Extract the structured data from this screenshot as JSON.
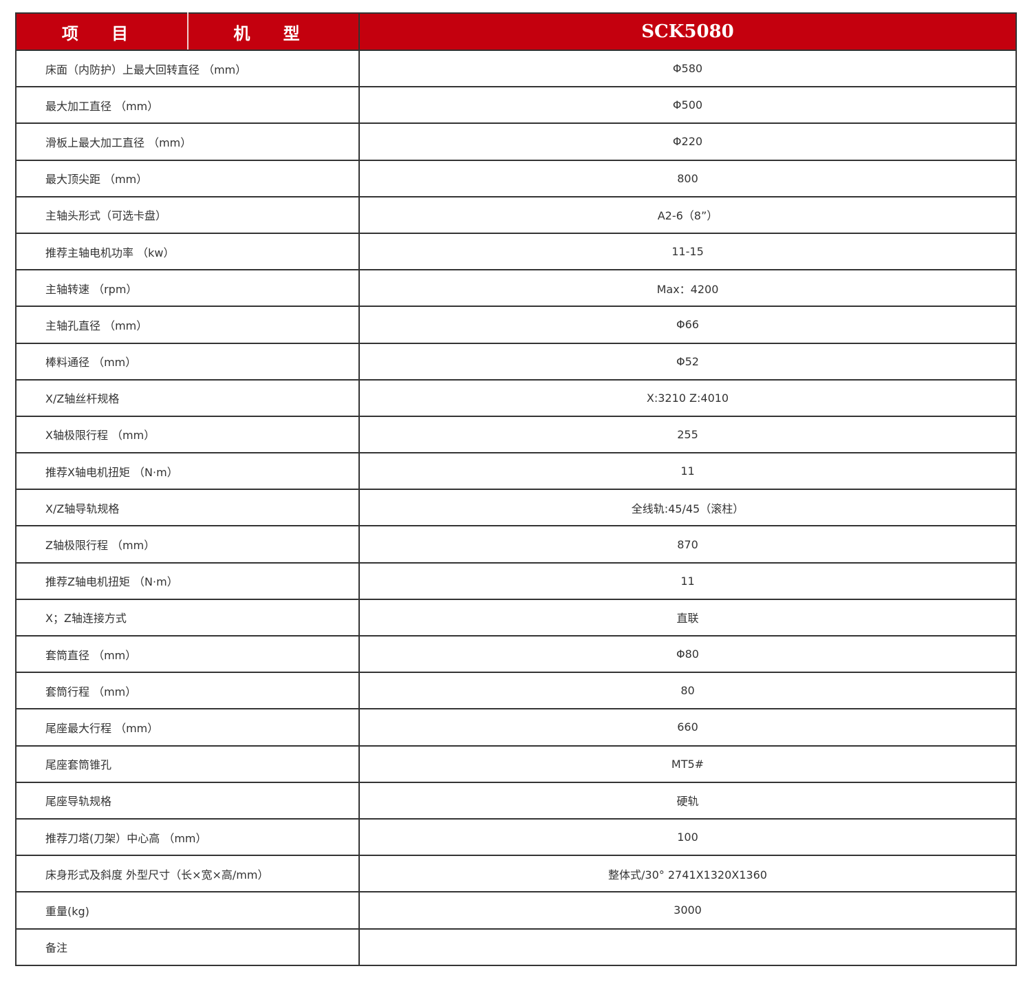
{
  "header": {
    "item": "项 目",
    "model_label": "机 型",
    "model": "SCK5080"
  },
  "accent_color": "#c4000e",
  "rows": [
    {
      "item": "床面（内防护）上最大回转直径 （mm）",
      "value": "Φ580"
    },
    {
      "item": "最大加工直径 （mm）",
      "value": "Φ500"
    },
    {
      "item": "滑板上最大加工直径 （mm）",
      "value": "Φ220"
    },
    {
      "item": "最大顶尖距 （mm）",
      "value": "800"
    },
    {
      "item": "主轴头形式（可选卡盘）",
      "value": "A2-6（8”）"
    },
    {
      "item": "推荐主轴电机功率 （kw）",
      "value": "11-15"
    },
    {
      "item": "主轴转速 （rpm）",
      "value": "Max：4200"
    },
    {
      "item": "主轴孔直径 （mm）",
      "value": "Φ66"
    },
    {
      "item": "棒料通径 （mm）",
      "value": "Φ52"
    },
    {
      "item": "X/Z轴丝杆规格",
      "value": "X:3210 Z:4010"
    },
    {
      "item": "X轴极限行程 （mm）",
      "value": "255"
    },
    {
      "item": "推荐X轴电机扭矩 （N·m）",
      "value": "11"
    },
    {
      "item": "X/Z轴导轨规格",
      "value": "全线轨:45/45（滚柱）"
    },
    {
      "item": "Z轴极限行程 （mm）",
      "value": "870"
    },
    {
      "item": "推荐Z轴电机扭矩 （N·m）",
      "value": "11"
    },
    {
      "item": "X；Z轴连接方式",
      "value": "直联"
    },
    {
      "item": "套筒直径 （mm）",
      "value": "Φ80"
    },
    {
      "item": "套筒行程 （mm）",
      "value": "80"
    },
    {
      "item": "尾座最大行程 （mm）",
      "value": "660"
    },
    {
      "item": "尾座套筒锥孔",
      "value": "MT5#"
    },
    {
      "item": "尾座导轨规格",
      "value": "硬轨"
    },
    {
      "item": "推荐刀塔(刀架）中心高 （mm）",
      "value": "100"
    },
    {
      "item": "床身形式及斜度  外型尺寸（长×宽×高/mm）",
      "value": "整体式/30°  2741X1320X1360"
    },
    {
      "item": "重量(kg)",
      "value": "3000"
    },
    {
      "item": "备注",
      "value": ""
    }
  ]
}
